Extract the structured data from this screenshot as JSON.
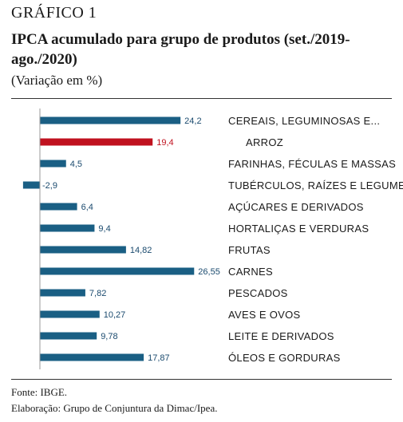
{
  "header": {
    "label": "GRÁFICO 1",
    "title": "IPCA acumulado para grupo de produtos (set./2019-ago./2020)",
    "subtitle": "(Variação em %)"
  },
  "footer": {
    "source": "Fonte: IBGE.",
    "credit": "Elaboração: Grupo de Conjuntura da Dimac/Ipea."
  },
  "colors": {
    "bar": "#1a5f84",
    "highlight": "#c0121f",
    "value_text": "#1a4a6e"
  },
  "chart_data": {
    "type": "bar",
    "orientation": "horizontal",
    "categories": [
      "CEREAIS, LEGUMINOSAS E...",
      "ARROZ",
      "FARINHAS, FÉCULAS E MASSAS",
      "TUBÉRCULOS, RAÍZES E LEGUMES",
      "AÇÚCARES E DERIVADOS",
      "HORTALIÇAS E VERDURAS",
      "FRUTAS",
      "CARNES",
      "PESCADOS",
      "AVES E OVOS",
      "LEITE E DERIVADOS",
      "ÓLEOS E GORDURAS"
    ],
    "values": [
      24.2,
      19.4,
      4.5,
      -2.9,
      6.4,
      9.4,
      14.82,
      26.55,
      7.82,
      10.27,
      9.78,
      17.87
    ],
    "labels": [
      "24,2",
      "19,4",
      "4,5",
      "-2,9",
      "6,4",
      "9,4",
      "14,82",
      "26,55",
      "7,82",
      "10,27",
      "9,78",
      "17,87"
    ],
    "highlight_index": 1,
    "indented_indices": [
      1
    ],
    "xlim": [
      -3,
      27
    ],
    "grid": false
  }
}
